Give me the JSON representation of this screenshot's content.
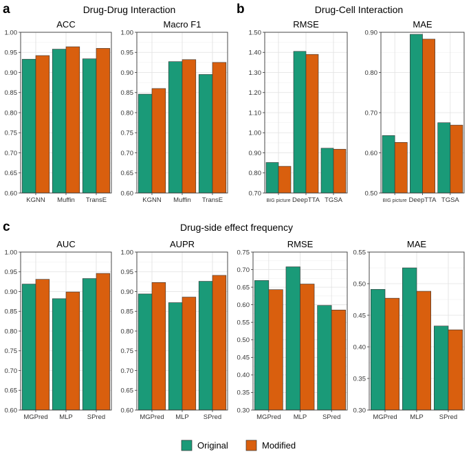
{
  "panels": [
    {
      "letter": "a",
      "title": "Drug-Drug Interaction"
    },
    {
      "letter": "b",
      "title": "Drug-Cell Interaction"
    },
    {
      "letter": "c",
      "title": "Drug-side effect frequency"
    }
  ],
  "legend": [
    {
      "name": "Original",
      "color": "#1a9a78"
    },
    {
      "name": "Modified",
      "color": "#d95f0e"
    }
  ],
  "colors": {
    "original": "#1a9a78",
    "modified": "#d95f0e",
    "grid": "#e0e0e0",
    "frame": "#333333"
  },
  "chart_data": [
    {
      "type": "bar",
      "panel": "a",
      "title": "ACC",
      "categories": [
        "KGNN",
        "Muffin",
        "TransE"
      ],
      "series": [
        {
          "name": "Original",
          "values": [
            0.933,
            0.958,
            0.934
          ]
        },
        {
          "name": "Modified",
          "values": [
            0.942,
            0.964,
            0.96
          ]
        }
      ],
      "ylim": [
        0.6,
        1.0
      ],
      "yticks": [
        "0.60",
        "0.65",
        "0.70",
        "0.75",
        "0.80",
        "0.85",
        "0.90",
        "0.95",
        "1.00"
      ]
    },
    {
      "type": "bar",
      "panel": "a",
      "title": "Macro F1",
      "categories": [
        "KGNN",
        "Muffin",
        "TransE"
      ],
      "series": [
        {
          "name": "Original",
          "values": [
            0.846,
            0.927,
            0.895
          ]
        },
        {
          "name": "Modified",
          "values": [
            0.86,
            0.932,
            0.925
          ]
        }
      ],
      "ylim": [
        0.6,
        1.0
      ],
      "yticks": [
        "0.60",
        "0.65",
        "0.70",
        "0.75",
        "0.80",
        "0.85",
        "0.90",
        "0.95",
        "1.00"
      ]
    },
    {
      "type": "bar",
      "panel": "b",
      "title": "RMSE",
      "categories": [
        "BIG picture",
        "DeepTTA",
        "TGSA"
      ],
      "series": [
        {
          "name": "Original",
          "values": [
            0.852,
            1.405,
            0.923
          ]
        },
        {
          "name": "Modified",
          "values": [
            0.833,
            1.39,
            0.918
          ]
        }
      ],
      "ylim": [
        0.7,
        1.5
      ],
      "yticks": [
        "0.70",
        "0.80",
        "0.90",
        "1.00",
        "1.10",
        "1.20",
        "1.30",
        "1.40",
        "1.50"
      ]
    },
    {
      "type": "bar",
      "panel": "b",
      "title": "MAE",
      "categories": [
        "BIG picture",
        "DeepTTA",
        "TGSA"
      ],
      "series": [
        {
          "name": "Original",
          "values": [
            0.643,
            0.895,
            0.675
          ]
        },
        {
          "name": "Modified",
          "values": [
            0.626,
            0.883,
            0.669
          ]
        }
      ],
      "ylim": [
        0.5,
        0.9
      ],
      "yticks": [
        "0.50",
        "0.60",
        "0.70",
        "0.80",
        "0.90"
      ]
    },
    {
      "type": "bar",
      "panel": "c",
      "title": "AUC",
      "categories": [
        "MGPred",
        "MLP",
        "SPred"
      ],
      "series": [
        {
          "name": "Original",
          "values": [
            0.919,
            0.882,
            0.933
          ]
        },
        {
          "name": "Modified",
          "values": [
            0.931,
            0.899,
            0.946
          ]
        }
      ],
      "ylim": [
        0.6,
        1.0
      ],
      "yticks": [
        "0.60",
        "0.65",
        "0.70",
        "0.75",
        "0.80",
        "0.85",
        "0.90",
        "0.95",
        "1.00"
      ]
    },
    {
      "type": "bar",
      "panel": "c",
      "title": "AUPR",
      "categories": [
        "MGPred",
        "MLP",
        "SPred"
      ],
      "series": [
        {
          "name": "Original",
          "values": [
            0.894,
            0.872,
            0.926
          ]
        },
        {
          "name": "Modified",
          "values": [
            0.923,
            0.886,
            0.941
          ]
        }
      ],
      "ylim": [
        0.6,
        1.0
      ],
      "yticks": [
        "0.60",
        "0.65",
        "0.70",
        "0.75",
        "0.80",
        "0.85",
        "0.90",
        "0.95",
        "1.00"
      ]
    },
    {
      "type": "bar",
      "panel": "c",
      "title": "RMSE",
      "categories": [
        "MGPred",
        "MLP",
        "SPred"
      ],
      "series": [
        {
          "name": "Original",
          "values": [
            0.669,
            0.708,
            0.598
          ]
        },
        {
          "name": "Modified",
          "values": [
            0.643,
            0.659,
            0.585
          ]
        }
      ],
      "ylim": [
        0.3,
        0.75
      ],
      "yticks": [
        "0.30",
        "0.35",
        "0.40",
        "0.45",
        "0.50",
        "0.55",
        "0.60",
        "0.65",
        "0.70",
        "0.75"
      ]
    },
    {
      "type": "bar",
      "panel": "c",
      "title": "MAE",
      "categories": [
        "MGPred",
        "MLP",
        "SPred"
      ],
      "series": [
        {
          "name": "Original",
          "values": [
            0.491,
            0.525,
            0.433
          ]
        },
        {
          "name": "Modified",
          "values": [
            0.477,
            0.488,
            0.427
          ]
        }
      ],
      "ylim": [
        0.3,
        0.55
      ],
      "yticks": [
        "0.30",
        "0.35",
        "0.40",
        "0.45",
        "0.50",
        "0.55"
      ]
    }
  ]
}
